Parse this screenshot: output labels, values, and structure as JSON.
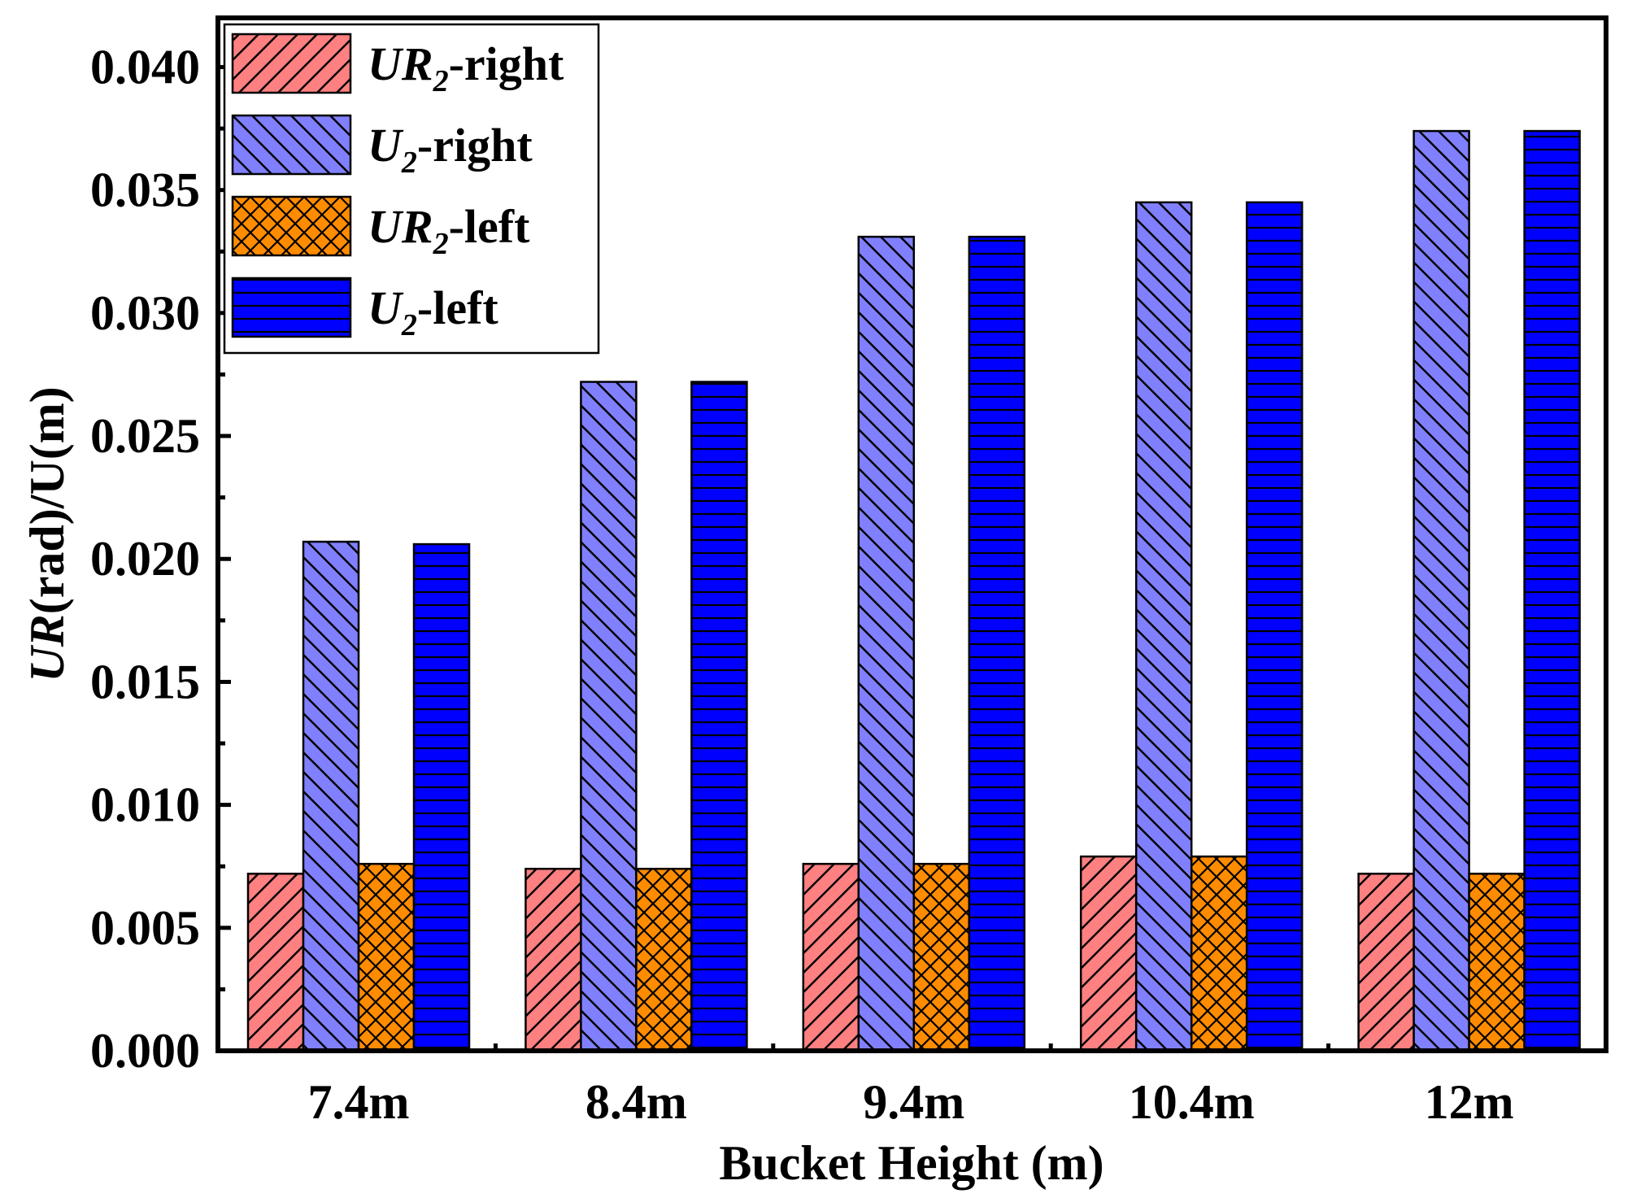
{
  "chart_data": {
    "type": "bar",
    "title": "",
    "xlabel": "Bucket Height (m)",
    "ylabel": {
      "italic": "UR",
      "rest": "(rad)/U(m)"
    },
    "categories": [
      "7.4m",
      "8.4m",
      "9.4m",
      "10.4m",
      "12m"
    ],
    "ylim": [
      0,
      0.042
    ],
    "yticks": [
      "0.000",
      "0.005",
      "0.010",
      "0.015",
      "0.020",
      "0.025",
      "0.030",
      "0.035",
      "0.040"
    ],
    "ytick_values": [
      0,
      0.005,
      0.01,
      0.015,
      0.02,
      0.025,
      0.03,
      0.035,
      0.04
    ],
    "grid": false,
    "legend_position": "top-left",
    "series": [
      {
        "name": "UR2-right",
        "label_main": "UR",
        "label_sub": "2",
        "label_rest": "-right",
        "color": "#FF8080",
        "pattern": "diag-up",
        "values": [
          0.0072,
          0.0074,
          0.0076,
          0.0079,
          0.0072
        ]
      },
      {
        "name": "U2-right",
        "label_main": "U",
        "label_sub": "2",
        "label_rest": "-right",
        "color": "#8080FF",
        "pattern": "diag-down",
        "values": [
          0.0207,
          0.0272,
          0.0331,
          0.0345,
          0.0374
        ]
      },
      {
        "name": "UR2-left",
        "label_main": "UR",
        "label_sub": "2",
        "label_rest": "-left",
        "color": "#FF8C00",
        "pattern": "crosshatch",
        "values": [
          0.0076,
          0.0074,
          0.0076,
          0.0079,
          0.0072
        ]
      },
      {
        "name": "U2-left",
        "label_main": "U",
        "label_sub": "2",
        "label_rest": "-left",
        "color": "#0000FF",
        "pattern": "horizontal",
        "values": [
          0.0206,
          0.0272,
          0.0331,
          0.0345,
          0.0374
        ]
      }
    ]
  }
}
